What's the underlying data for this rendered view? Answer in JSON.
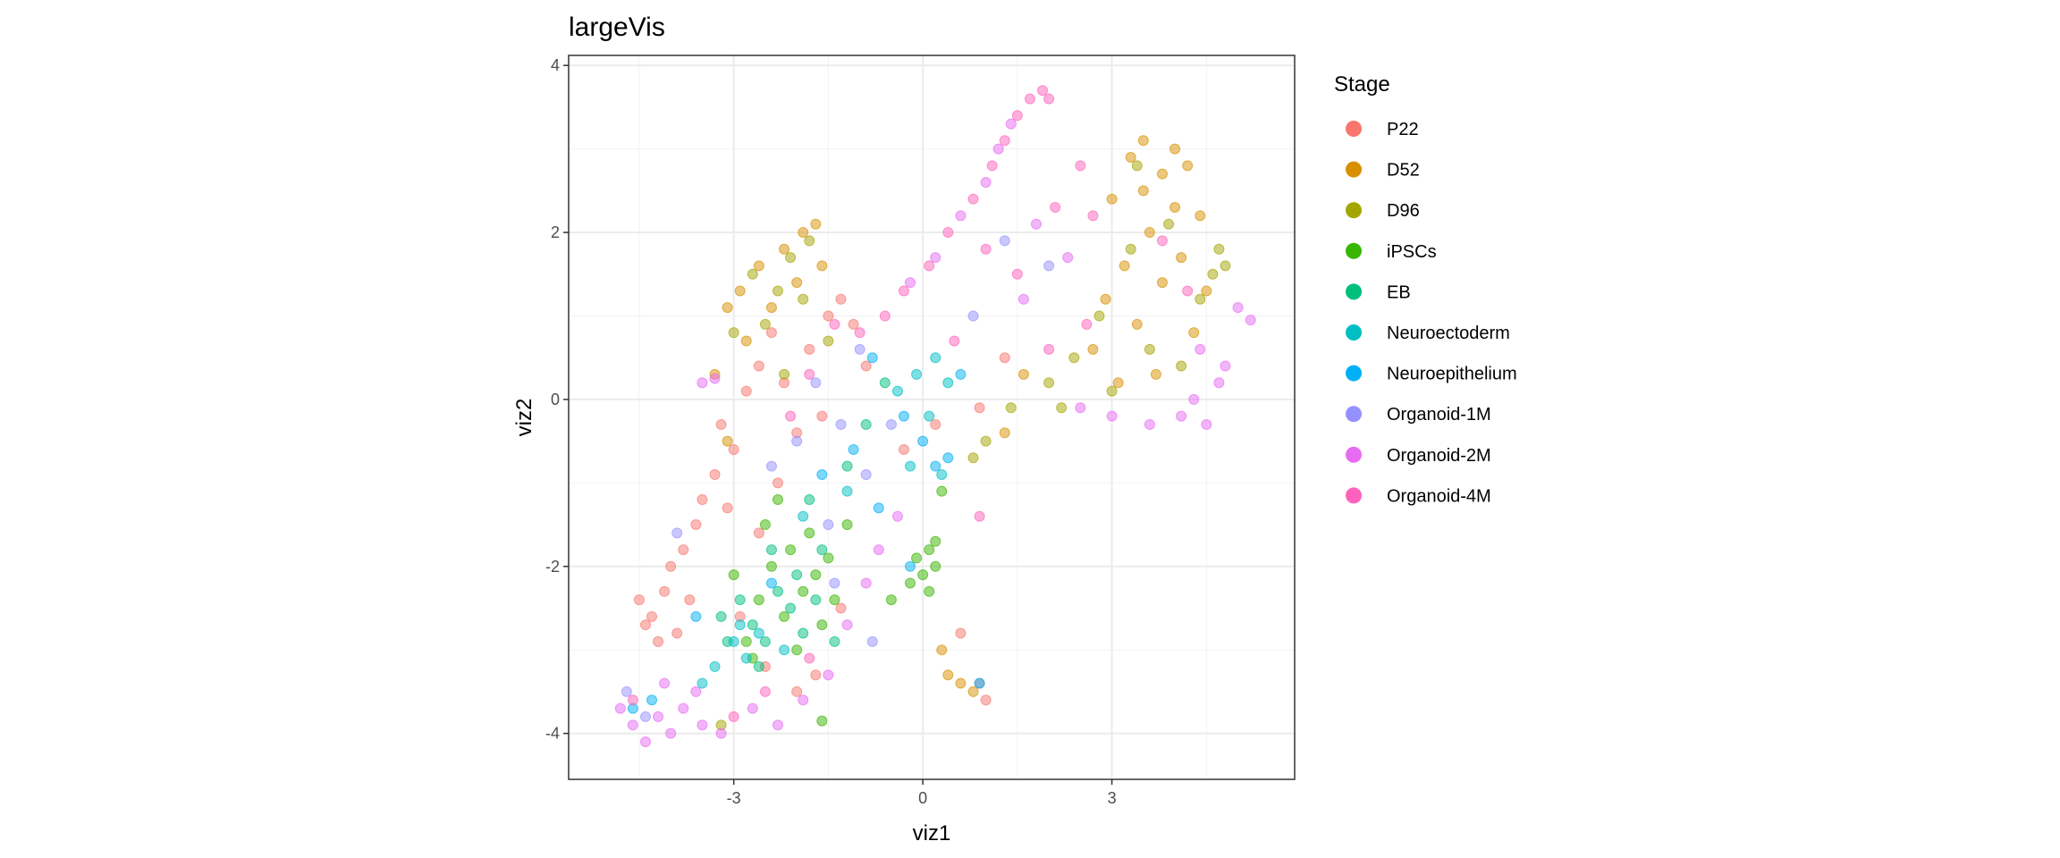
{
  "chart_data": {
    "type": "scatter",
    "title": "largeVis",
    "xlabel": "viz1",
    "ylabel": "viz2",
    "xlim": [
      -5.62,
      5.9
    ],
    "ylim": [
      -4.55,
      4.12
    ],
    "xticks": [
      -3,
      0,
      3
    ],
    "yticks": [
      -4,
      -2,
      0,
      2,
      4
    ],
    "grid": true,
    "legend": {
      "title": "Stage",
      "placement": "right"
    },
    "alpha": 0.5,
    "series": [
      {
        "name": "P22",
        "color": "#F8766D",
        "points": [
          [
            -4.3,
            -2.6
          ],
          [
            -4.1,
            -2.3
          ],
          [
            -3.9,
            -2.8
          ],
          [
            -4.2,
            -2.9
          ],
          [
            -4,
            -2
          ],
          [
            -3.8,
            -1.8
          ],
          [
            -3.7,
            -2.4
          ],
          [
            -4.4,
            -2.7
          ],
          [
            -3.6,
            -1.5
          ],
          [
            -3.5,
            -1.2
          ],
          [
            -3.3,
            -0.9
          ],
          [
            -3.2,
            -0.3
          ],
          [
            -3,
            -0.6
          ],
          [
            -2.8,
            0.1
          ],
          [
            -2.6,
            0.4
          ],
          [
            -2.4,
            0.8
          ],
          [
            -2.2,
            0.2
          ],
          [
            -2,
            -0.4
          ],
          [
            -1.8,
            0.6
          ],
          [
            -1.5,
            1
          ],
          [
            -1.3,
            1.2
          ],
          [
            -1.1,
            0.9
          ],
          [
            -0.9,
            0.4
          ],
          [
            -1.6,
            -0.2
          ],
          [
            -2.3,
            -1
          ],
          [
            -2.6,
            -1.6
          ],
          [
            -3.1,
            -1.3
          ],
          [
            -2.9,
            -2.6
          ],
          [
            -2.5,
            -3.2
          ],
          [
            -2,
            -3.5
          ],
          [
            -1.7,
            -3.3
          ],
          [
            -1.3,
            -2.5
          ],
          [
            -0.3,
            -0.6
          ],
          [
            0.2,
            -0.3
          ],
          [
            0.9,
            -0.1
          ],
          [
            1.3,
            0.5
          ],
          [
            0.6,
            -2.8
          ],
          [
            0.9,
            -3.4
          ],
          [
            1,
            -3.6
          ],
          [
            -4.5,
            -2.4
          ]
        ]
      },
      {
        "name": "D52",
        "color": "#D89000",
        "points": [
          [
            3,
            2.4
          ],
          [
            3.3,
            2.9
          ],
          [
            3.5,
            3.1
          ],
          [
            3.8,
            2.7
          ],
          [
            4,
            3
          ],
          [
            4.2,
            2.8
          ],
          [
            4.4,
            2.2
          ],
          [
            3.6,
            2
          ],
          [
            3.2,
            1.6
          ],
          [
            2.9,
            1.2
          ],
          [
            3.4,
            0.9
          ],
          [
            3.8,
            1.4
          ],
          [
            4.1,
            1.7
          ],
          [
            4.3,
            0.8
          ],
          [
            3.7,
            0.3
          ],
          [
            3.1,
            0.2
          ],
          [
            2.7,
            0.6
          ],
          [
            4.5,
            1.3
          ],
          [
            3.5,
            2.5
          ],
          [
            4,
            2.3
          ],
          [
            -2.2,
            1.8
          ],
          [
            -1.9,
            2
          ],
          [
            -1.7,
            2.1
          ],
          [
            -2,
            1.4
          ],
          [
            -2.6,
            1.6
          ],
          [
            -2.9,
            1.3
          ],
          [
            -3.1,
            1.1
          ],
          [
            -2.8,
            0.7
          ],
          [
            -2.4,
            1.1
          ],
          [
            -1.6,
            1.6
          ],
          [
            -3.3,
            0.3
          ],
          [
            -3.1,
            -0.5
          ],
          [
            0.3,
            -3
          ],
          [
            0.4,
            -3.3
          ],
          [
            0.6,
            -3.4
          ],
          [
            0.8,
            -3.5
          ],
          [
            1.3,
            -0.4
          ],
          [
            1.6,
            0.3
          ]
        ]
      },
      {
        "name": "D96",
        "color": "#A3A500",
        "points": [
          [
            4.6,
            1.5
          ],
          [
            4.8,
            1.6
          ],
          [
            4.7,
            1.8
          ],
          [
            4.4,
            1.2
          ],
          [
            3.9,
            2.1
          ],
          [
            3.3,
            1.8
          ],
          [
            2.8,
            1
          ],
          [
            2.4,
            0.5
          ],
          [
            2,
            0.2
          ],
          [
            2.2,
            -0.1
          ],
          [
            3.6,
            0.6
          ],
          [
            4.1,
            0.4
          ],
          [
            3,
            0.1
          ],
          [
            -2.1,
            1.7
          ],
          [
            -1.8,
            1.9
          ],
          [
            -2.3,
            1.3
          ],
          [
            -2.5,
            0.9
          ],
          [
            -1.9,
            1.2
          ],
          [
            -2.7,
            1.5
          ],
          [
            -1.5,
            0.7
          ],
          [
            -3,
            0.8
          ],
          [
            -2.2,
            0.3
          ],
          [
            1,
            -0.5
          ],
          [
            1.4,
            -0.1
          ],
          [
            0.8,
            -0.7
          ],
          [
            -3.2,
            -3.9
          ],
          [
            3.4,
            2.8
          ]
        ]
      },
      {
        "name": "iPSCs",
        "color": "#39B600",
        "points": [
          [
            -2.4,
            -2
          ],
          [
            -2.1,
            -1.8
          ],
          [
            -1.9,
            -2.3
          ],
          [
            -2.2,
            -2.6
          ],
          [
            -1.7,
            -2.1
          ],
          [
            -2.6,
            -2.4
          ],
          [
            -2.8,
            -2.9
          ],
          [
            -1.8,
            -1.6
          ],
          [
            -1.6,
            -2.7
          ],
          [
            -2,
            -3
          ],
          [
            -2.5,
            -1.5
          ],
          [
            -1.5,
            -1.9
          ],
          [
            -3,
            -2.1
          ],
          [
            -2.3,
            -1.2
          ],
          [
            -1.4,
            -2.4
          ],
          [
            -0.1,
            -1.9
          ],
          [
            0,
            -2.1
          ],
          [
            0.1,
            -1.8
          ],
          [
            0.2,
            -2
          ],
          [
            -0.2,
            -2.2
          ],
          [
            0.1,
            -2.3
          ],
          [
            0.2,
            -1.7
          ],
          [
            0.3,
            -1.1
          ],
          [
            -0.5,
            -2.4
          ],
          [
            -2.7,
            -3.1
          ],
          [
            -1.6,
            -3.85
          ],
          [
            -1.2,
            -1.5
          ]
        ]
      },
      {
        "name": "EB",
        "color": "#00BF7D",
        "points": [
          [
            -2.9,
            -2.4
          ],
          [
            -2.7,
            -2.7
          ],
          [
            -2.5,
            -2.9
          ],
          [
            -2.3,
            -2.3
          ],
          [
            -2.1,
            -2.5
          ],
          [
            -1.9,
            -2.8
          ],
          [
            -1.7,
            -2.4
          ],
          [
            -2,
            -2.1
          ],
          [
            -3.1,
            -2.9
          ],
          [
            -2.4,
            -1.8
          ],
          [
            -1.6,
            -1.8
          ],
          [
            -1.4,
            -2.9
          ],
          [
            -2.6,
            -3.2
          ],
          [
            -3.2,
            -2.6
          ],
          [
            -1.8,
            -1.2
          ],
          [
            -1.2,
            -0.8
          ],
          [
            -0.9,
            -0.3
          ],
          [
            -0.6,
            0.2
          ]
        ]
      },
      {
        "name": "Neuroectoderm",
        "color": "#00BFC4",
        "points": [
          [
            -3,
            -2.9
          ],
          [
            -2.8,
            -3.1
          ],
          [
            -2.6,
            -2.8
          ],
          [
            -3.3,
            -3.2
          ],
          [
            -2.9,
            -2.7
          ],
          [
            -2.2,
            -3
          ],
          [
            -3.5,
            -3.4
          ],
          [
            -0.1,
            0.3
          ],
          [
            0.2,
            0.5
          ],
          [
            0.4,
            0.2
          ],
          [
            0.1,
            -0.2
          ],
          [
            -0.2,
            -0.8
          ],
          [
            0.3,
            -0.9
          ],
          [
            -0.4,
            0.1
          ],
          [
            -1.2,
            -1.1
          ],
          [
            -1.9,
            -1.4
          ]
        ]
      },
      {
        "name": "Neuroepithelium",
        "color": "#00B0F6",
        "points": [
          [
            0.2,
            -0.8
          ],
          [
            0.4,
            -0.7
          ],
          [
            0,
            -0.5
          ],
          [
            -0.3,
            -0.2
          ],
          [
            -0.8,
            0.5
          ],
          [
            -1.1,
            -0.6
          ],
          [
            -1.6,
            -0.9
          ],
          [
            -2.4,
            -2.2
          ],
          [
            -3.6,
            -2.6
          ],
          [
            -4.6,
            -3.7
          ],
          [
            -4.3,
            -3.6
          ],
          [
            -0.2,
            -2
          ],
          [
            0.9,
            -3.4
          ],
          [
            -0.7,
            -1.3
          ],
          [
            0.6,
            0.3
          ]
        ]
      },
      {
        "name": "Organoid-1M",
        "color": "#9590FF",
        "points": [
          [
            -2,
            -0.5
          ],
          [
            -1.7,
            0.2
          ],
          [
            -1.3,
            -0.3
          ],
          [
            -0.9,
            -0.9
          ],
          [
            -0.5,
            -0.3
          ],
          [
            -1,
            0.6
          ],
          [
            -2.4,
            -0.8
          ],
          [
            -1.5,
            -1.5
          ],
          [
            -3.9,
            -1.6
          ],
          [
            -4.7,
            -3.5
          ],
          [
            -4.4,
            -3.8
          ],
          [
            1.3,
            1.9
          ],
          [
            2,
            1.6
          ],
          [
            0.8,
            1
          ],
          [
            -1.4,
            -2.2
          ],
          [
            -0.8,
            -2.9
          ]
        ]
      },
      {
        "name": "Organoid-2M",
        "color": "#E76BF3",
        "points": [
          [
            -4.8,
            -3.7
          ],
          [
            -4.6,
            -3.9
          ],
          [
            -4.4,
            -4.1
          ],
          [
            -4.2,
            -3.8
          ],
          [
            -4,
            -4
          ],
          [
            -3.8,
            -3.7
          ],
          [
            -3.5,
            -3.9
          ],
          [
            -3.2,
            -4
          ],
          [
            -3.6,
            -3.5
          ],
          [
            -4.1,
            -3.4
          ],
          [
            -2.7,
            -3.7
          ],
          [
            -2.3,
            -3.9
          ],
          [
            -1.9,
            -3.6
          ],
          [
            -1.5,
            -3.3
          ],
          [
            -1.2,
            -2.7
          ],
          [
            -0.9,
            -2.2
          ],
          [
            -0.7,
            -1.8
          ],
          [
            -0.4,
            -1.4
          ],
          [
            4.3,
            0
          ],
          [
            4.5,
            -0.3
          ],
          [
            4.7,
            0.2
          ],
          [
            4.8,
            0.4
          ],
          [
            4.4,
            0.6
          ],
          [
            4.1,
            -0.2
          ],
          [
            3.6,
            -0.3
          ],
          [
            3,
            -0.2
          ],
          [
            2.5,
            -0.1
          ],
          [
            5,
            1.1
          ],
          [
            5.2,
            0.95
          ],
          [
            1.2,
            3
          ],
          [
            1.4,
            3.3
          ],
          [
            1,
            2.6
          ],
          [
            0.6,
            2.2
          ],
          [
            0.2,
            1.7
          ],
          [
            -0.2,
            1.4
          ],
          [
            1.8,
            2.1
          ],
          [
            2.3,
            1.7
          ],
          [
            1.6,
            1.2
          ],
          [
            -3.3,
            0.25
          ],
          [
            -3.5,
            0.2
          ]
        ]
      },
      {
        "name": "Organoid-4M",
        "color": "#FF62BC",
        "points": [
          [
            1.7,
            3.6
          ],
          [
            1.9,
            3.7
          ],
          [
            2,
            3.6
          ],
          [
            1.5,
            3.4
          ],
          [
            1.3,
            3.1
          ],
          [
            1.1,
            2.8
          ],
          [
            0.8,
            2.4
          ],
          [
            0.4,
            2
          ],
          [
            0.1,
            1.6
          ],
          [
            -0.3,
            1.3
          ],
          [
            -0.6,
            1
          ],
          [
            -1,
            0.8
          ],
          [
            -1.4,
            0.9
          ],
          [
            -1.8,
            0.3
          ],
          [
            -2.1,
            -0.2
          ],
          [
            1,
            1.8
          ],
          [
            1.5,
            1.5
          ],
          [
            2.1,
            2.3
          ],
          [
            2.5,
            2.8
          ],
          [
            2.7,
            2.2
          ],
          [
            3.8,
            1.9
          ],
          [
            4.2,
            1.3
          ],
          [
            2.6,
            0.9
          ],
          [
            2,
            0.6
          ],
          [
            0.5,
            0.7
          ],
          [
            0.9,
            -1.4
          ],
          [
            -1.8,
            -3.1
          ],
          [
            -2.5,
            -3.5
          ],
          [
            -3,
            -3.8
          ],
          [
            -4.6,
            -3.6
          ]
        ]
      }
    ]
  }
}
